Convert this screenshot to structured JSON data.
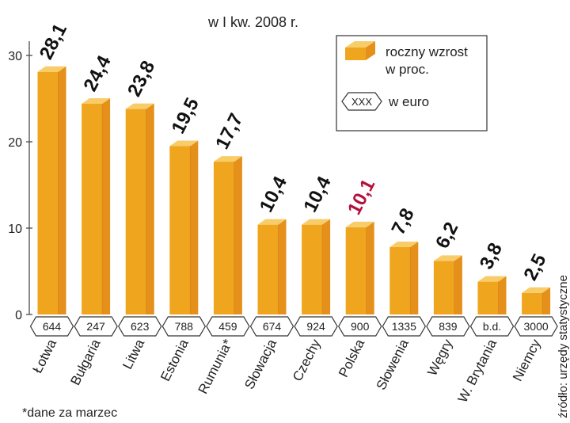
{
  "chart_data": {
    "type": "bar",
    "title": "w I kw. 2008 r.",
    "categories": [
      "Łotwa",
      "Bułgaria",
      "Litwa",
      "Estonia",
      "Rumunia*",
      "Słowacja",
      "Czechy",
      "Polska",
      "Słowenia",
      "Węgry",
      "W. Brytania",
      "Niemcy"
    ],
    "values": [
      28.1,
      24.4,
      23.8,
      19.5,
      17.7,
      10.4,
      10.4,
      10.1,
      7.8,
      6.2,
      3.8,
      2.5
    ],
    "value_labels": [
      "28,1",
      "24,4",
      "23,8",
      "19,5",
      "17,7",
      "10,4",
      "10,4",
      "10,1",
      "7,8",
      "6,2",
      "3,8",
      "2,5"
    ],
    "euro_values": [
      "644",
      "247",
      "623",
      "788",
      "459",
      "674",
      "924",
      "900",
      "1335",
      "839",
      "b.d.",
      "3000"
    ],
    "highlight_category": "Polska",
    "ylim": [
      0,
      30
    ],
    "yticks": [
      0,
      10,
      20,
      30
    ],
    "grid": false,
    "legend": {
      "placement": "top-right",
      "items": [
        {
          "label_line1": "roczny wzrost",
          "label_line2": "w proc."
        },
        {
          "symbol_text": "XXX",
          "label": "w euro"
        }
      ]
    },
    "footnote": "*dane za marzec",
    "source": "źródło: urzędy statystyczne",
    "colors": {
      "bar_front": "#F0A51F",
      "bar_side": "#E5901A",
      "bar_top": "#F8CC68",
      "axis": "#4a4a4a",
      "value_label": "#111111",
      "highlight_label": "#B5103C",
      "legend_border": "#333333"
    }
  }
}
